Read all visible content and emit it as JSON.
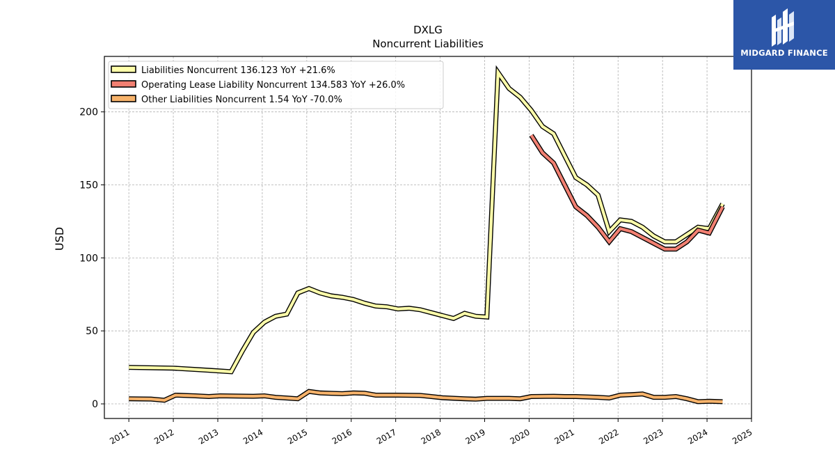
{
  "brand": {
    "name": "MIDGARD FINANCE",
    "bg_color": "#2c56a8"
  },
  "chart_data": {
    "type": "line",
    "title": "DXLG",
    "subtitle": "Noncurrent  Liabilities",
    "ylabel": "USD",
    "xlabel": "",
    "xlim": [
      2010.45,
      2025.0
    ],
    "ylim": [
      -10,
      238
    ],
    "x_ticks": [
      "2011",
      "2012",
      "2013",
      "2014",
      "2015",
      "2016",
      "2017",
      "2018",
      "2019",
      "2020",
      "2021",
      "2022",
      "2023",
      "2024",
      "2025"
    ],
    "y_ticks": [
      0,
      50,
      100,
      150,
      200
    ],
    "grid": true,
    "legend_position": "top-left",
    "series": [
      {
        "name": "Liabilities Noncurrent",
        "legend_label": "Liabilities Noncurrent  136.123 YoY +21.6%",
        "color": "#ffffaa",
        "points": [
          [
            2011.0,
            25.0
          ],
          [
            2012.0,
            24.5
          ],
          [
            2012.8,
            23.0
          ],
          [
            2013.3,
            22.0
          ],
          [
            2013.55,
            36.0
          ],
          [
            2013.8,
            49.0
          ],
          [
            2014.05,
            56.0
          ],
          [
            2014.3,
            60.0
          ],
          [
            2014.55,
            61.5
          ],
          [
            2014.8,
            76.0
          ],
          [
            2015.05,
            79.0
          ],
          [
            2015.3,
            76.0
          ],
          [
            2015.55,
            74.0
          ],
          [
            2015.8,
            73.0
          ],
          [
            2016.05,
            71.5
          ],
          [
            2016.3,
            69.0
          ],
          [
            2016.55,
            67.0
          ],
          [
            2016.8,
            66.5
          ],
          [
            2017.05,
            65.0
          ],
          [
            2017.3,
            65.5
          ],
          [
            2017.55,
            64.5
          ],
          [
            2017.8,
            62.5
          ],
          [
            2018.05,
            60.5
          ],
          [
            2018.3,
            58.5
          ],
          [
            2018.55,
            62.0
          ],
          [
            2018.8,
            60.0
          ],
          [
            2019.05,
            59.5
          ],
          [
            2019.3,
            227.0
          ],
          [
            2019.55,
            216.0
          ],
          [
            2019.8,
            210.0
          ],
          [
            2020.05,
            201.0
          ],
          [
            2020.3,
            190.0
          ],
          [
            2020.55,
            185.0
          ],
          [
            2020.8,
            170.0
          ],
          [
            2021.05,
            155.0
          ],
          [
            2021.3,
            150.0
          ],
          [
            2021.55,
            143.0
          ],
          [
            2021.8,
            118.0
          ],
          [
            2022.05,
            126.0
          ],
          [
            2022.3,
            125.0
          ],
          [
            2022.55,
            121.0
          ],
          [
            2022.8,
            115.0
          ],
          [
            2023.05,
            111.0
          ],
          [
            2023.3,
            111.0
          ],
          [
            2023.55,
            116.0
          ],
          [
            2023.8,
            121.0
          ],
          [
            2024.05,
            120.0
          ],
          [
            2024.35,
            137.0
          ]
        ]
      },
      {
        "name": "Operating Lease Liability Noncurrent",
        "legend_label": "Operating Lease Liability Noncurrent  134.583 YoY +26.0%",
        "color": "#f28072",
        "points": [
          [
            2020.05,
            184.0
          ],
          [
            2020.3,
            172.0
          ],
          [
            2020.55,
            165.0
          ],
          [
            2020.8,
            150.0
          ],
          [
            2021.05,
            135.0
          ],
          [
            2021.3,
            129.0
          ],
          [
            2021.55,
            121.0
          ],
          [
            2021.8,
            111.0
          ],
          [
            2022.05,
            120.0
          ],
          [
            2022.3,
            118.0
          ],
          [
            2022.55,
            114.0
          ],
          [
            2022.8,
            110.0
          ],
          [
            2023.05,
            106.0
          ],
          [
            2023.3,
            106.0
          ],
          [
            2023.55,
            111.0
          ],
          [
            2023.8,
            119.0
          ],
          [
            2024.05,
            117.0
          ],
          [
            2024.35,
            135.0
          ]
        ]
      },
      {
        "name": "Other Liabilities Noncurrent",
        "legend_label": "Other Liabilities Noncurrent  1.54 YoY -70.0%",
        "color": "#f7b36b",
        "points": [
          [
            2011.0,
            3.5
          ],
          [
            2011.5,
            3.3
          ],
          [
            2011.8,
            2.5
          ],
          [
            2012.05,
            6.0
          ],
          [
            2012.5,
            5.5
          ],
          [
            2012.8,
            5.0
          ],
          [
            2013.05,
            5.5
          ],
          [
            2013.5,
            5.3
          ],
          [
            2013.8,
            5.2
          ],
          [
            2014.05,
            5.5
          ],
          [
            2014.3,
            4.5
          ],
          [
            2014.55,
            4.0
          ],
          [
            2014.8,
            3.5
          ],
          [
            2015.05,
            8.5
          ],
          [
            2015.3,
            7.5
          ],
          [
            2015.55,
            7.2
          ],
          [
            2015.8,
            7.0
          ],
          [
            2016.05,
            7.5
          ],
          [
            2016.3,
            7.3
          ],
          [
            2016.55,
            6.0
          ],
          [
            2016.8,
            6.0
          ],
          [
            2017.05,
            6.0
          ],
          [
            2017.55,
            5.8
          ],
          [
            2017.8,
            5.0
          ],
          [
            2018.05,
            4.2
          ],
          [
            2018.55,
            3.5
          ],
          [
            2018.8,
            3.2
          ],
          [
            2019.05,
            3.8
          ],
          [
            2019.55,
            3.8
          ],
          [
            2019.8,
            3.5
          ],
          [
            2020.05,
            5.0
          ],
          [
            2020.55,
            5.2
          ],
          [
            2020.8,
            5.0
          ],
          [
            2021.05,
            5.0
          ],
          [
            2021.55,
            4.5
          ],
          [
            2021.8,
            4.0
          ],
          [
            2022.05,
            6.0
          ],
          [
            2022.3,
            6.3
          ],
          [
            2022.55,
            6.8
          ],
          [
            2022.8,
            4.5
          ],
          [
            2023.05,
            4.5
          ],
          [
            2023.3,
            5.0
          ],
          [
            2023.55,
            3.5
          ],
          [
            2023.8,
            1.5
          ],
          [
            2024.05,
            1.8
          ],
          [
            2024.35,
            1.5
          ]
        ]
      }
    ]
  }
}
